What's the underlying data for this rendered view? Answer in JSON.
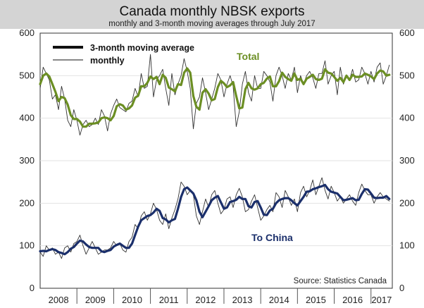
{
  "chart_data": {
    "type": "line",
    "title": "Canada monthly NBSK exports",
    "subtitle": "monthly and 3-month moving averages through July 2017",
    "xlabel": "",
    "ylabel": "",
    "ylim": [
      0,
      600
    ],
    "yticks": [
      0,
      100,
      200,
      300,
      400,
      500,
      600
    ],
    "years": [
      "2008",
      "2009",
      "2010",
      "2011",
      "2012",
      "2013",
      "2014",
      "2015",
      "2016",
      "2017"
    ],
    "start": "Jan 2008",
    "end": "Jul 2017",
    "legend": {
      "position": "top-left",
      "entries": [
        "3-month moving average",
        "monthly"
      ]
    },
    "annotations": {
      "total": "Total",
      "china": "To China"
    },
    "source": "Source: Statistics Canada",
    "colors": {
      "total": "#6b8e23",
      "china": "#1b2f6b",
      "monthly": "#333333",
      "header": "#d4d4d4"
    },
    "series": [
      {
        "name": "Total monthly",
        "values": [
          470,
          520,
          505,
          490,
          445,
          455,
          420,
          475,
          445,
          395,
          380,
          420,
          395,
          360,
          385,
          395,
          380,
          385,
          400,
          385,
          420,
          405,
          370,
          410,
          430,
          445,
          425,
          420,
          415,
          435,
          440,
          470,
          450,
          505,
          470,
          475,
          550,
          450,
          490,
          500,
          515,
          470,
          430,
          505,
          455,
          480,
          500,
          540,
          510,
          470,
          375,
          435,
          450,
          495,
          460,
          420,
          445,
          470,
          505,
          490,
          450,
          480,
          500,
          475,
          380,
          415,
          480,
          510,
          460,
          440,
          500,
          470,
          470,
          510,
          500,
          485,
          440,
          500,
          520,
          500,
          470,
          505,
          490,
          520,
          460,
          500,
          480,
          500,
          510,
          495,
          470,
          505,
          505,
          535,
          480,
          500,
          510,
          455,
          520,
          480,
          500,
          490,
          515,
          485,
          490,
          520,
          505,
          480,
          510,
          485,
          520,
          530,
          480,
          500,
          525
        ]
      },
      {
        "name": "Total 3-month moving average",
        "values": [
          480,
          500,
          505,
          498,
          480,
          462,
          440,
          450,
          447,
          432,
          407,
          398,
          398,
          392,
          380,
          380,
          387,
          387,
          388,
          390,
          400,
          402,
          400,
          395,
          405,
          428,
          433,
          430,
          420,
          423,
          430,
          448,
          453,
          475,
          475,
          483,
          498,
          492,
          497,
          480,
          502,
          495,
          472,
          468,
          463,
          480,
          478,
          507,
          517,
          507,
          452,
          427,
          420,
          460,
          468,
          458,
          442,
          445,
          473,
          488,
          482,
          473,
          477,
          485,
          452,
          423,
          425,
          468,
          483,
          470,
          467,
          470,
          480,
          483,
          493,
          498,
          475,
          475,
          487,
          507,
          497,
          492,
          488,
          505,
          490,
          493,
          480,
          493,
          497,
          502,
          492,
          490,
          493,
          515,
          507,
          505,
          497,
          488,
          495,
          485,
          500,
          490,
          502,
          497,
          497,
          498,
          505,
          502,
          498,
          492,
          505,
          512,
          510,
          500,
          502
        ]
      },
      {
        "name": "To China monthly",
        "values": [
          85,
          75,
          100,
          90,
          95,
          80,
          85,
          70,
          95,
          100,
          85,
          105,
          110,
          125,
          100,
          80,
          95,
          110,
          95,
          80,
          85,
          90,
          90,
          95,
          110,
          100,
          105,
          90,
          85,
          110,
          120,
          150,
          140,
          170,
          180,
          160,
          175,
          200,
          185,
          160,
          150,
          175,
          140,
          165,
          185,
          210,
          250,
          240,
          220,
          230,
          220,
          170,
          150,
          180,
          210,
          190,
          220,
          230,
          200,
          175,
          185,
          210,
          215,
          190,
          220,
          235,
          215,
          180,
          185,
          205,
          220,
          190,
          160,
          170,
          185,
          195,
          180,
          225,
          215,
          190,
          230,
          215,
          195,
          210,
          180,
          225,
          240,
          215,
          230,
          255,
          220,
          240,
          260,
          230,
          210,
          240,
          225,
          205,
          215,
          200,
          210,
          220,
          205,
          195,
          225,
          245,
          230,
          220,
          220,
          200,
          215,
          225,
          215,
          210,
          205
        ]
      },
      {
        "name": "To China 3-month moving average",
        "values": [
          87,
          88,
          87,
          90,
          92,
          90,
          85,
          83,
          80,
          85,
          93,
          97,
          105,
          112,
          110,
          103,
          97,
          95,
          95,
          95,
          87,
          85,
          88,
          90,
          98,
          102,
          105,
          100,
          95,
          95,
          105,
          125,
          145,
          160,
          165,
          170,
          172,
          178,
          187,
          182,
          165,
          162,
          155,
          160,
          163,
          187,
          215,
          233,
          237,
          230,
          223,
          207,
          180,
          167,
          180,
          193,
          207,
          213,
          217,
          202,
          187,
          190,
          203,
          205,
          208,
          215,
          210,
          210,
          193,
          190,
          203,
          205,
          190,
          173,
          172,
          183,
          187,
          200,
          207,
          210,
          212,
          212,
          207,
          200,
          195,
          205,
          215,
          227,
          228,
          233,
          235,
          238,
          240,
          243,
          233,
          227,
          225,
          223,
          215,
          207,
          208,
          210,
          212,
          207,
          208,
          222,
          233,
          232,
          223,
          213,
          212,
          213,
          213,
          217,
          210
        ]
      }
    ]
  }
}
